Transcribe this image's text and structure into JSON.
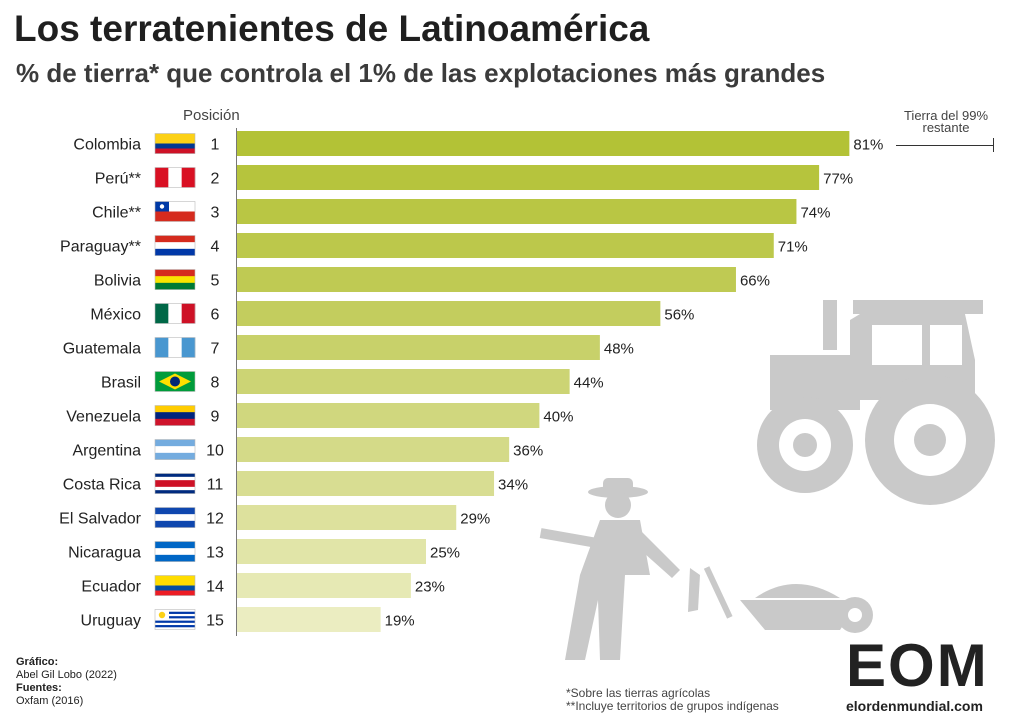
{
  "header": {
    "title": "Los terratenientes de Latinoamérica",
    "subtitle": "% de tierra* que controla el 1% de las explotaciones más grandes",
    "position_label": "Posición",
    "rest_label": "Tierra del 99% restante"
  },
  "chart_data": {
    "type": "bar",
    "orientation": "horizontal",
    "title": "Los terratenientes de Latinoamérica",
    "subtitle": "% de tierra* que controla el 1% de las explotaciones más grandes",
    "categories": [
      "Colombia",
      "Perú**",
      "Chile**",
      "Paraguay**",
      "Bolivia",
      "México",
      "Guatemala",
      "Brasil",
      "Venezuela",
      "Argentina",
      "Costa Rica",
      "El Salvador",
      "Nicaragua",
      "Ecuador",
      "Uruguay"
    ],
    "positions": [
      1,
      2,
      3,
      4,
      5,
      6,
      7,
      8,
      9,
      10,
      11,
      12,
      13,
      14,
      15
    ],
    "values": [
      81,
      77,
      74,
      71,
      66,
      56,
      48,
      44,
      40,
      36,
      34,
      29,
      25,
      23,
      19
    ],
    "value_labels": [
      "81%",
      "77%",
      "74%",
      "71%",
      "66%",
      "56%",
      "48%",
      "44%",
      "40%",
      "36%",
      "34%",
      "29%",
      "25%",
      "23%",
      "19%"
    ],
    "xlim": [
      0,
      100
    ],
    "grid": false,
    "bar_colors": [
      "#b3c236",
      "#b6c43d",
      "#b9c644",
      "#bcc84b",
      "#bfca53",
      "#c3cd5e",
      "#c8d16a",
      "#ccd474",
      "#d0d77e",
      "#d4da88",
      "#d8dd92",
      "#dde19d",
      "#e1e5a8",
      "#e6e9b4",
      "#ebedc1"
    ]
  },
  "flags": [
    {
      "country": "Colombia",
      "colors": [
        "#fcd116",
        "#fcd116",
        "#003893",
        "#ce1126"
      ],
      "type": "h"
    },
    {
      "country": "Perú",
      "colors": [
        "#d91023",
        "#ffffff",
        "#d91023"
      ],
      "type": "v"
    },
    {
      "country": "Chile",
      "colors": [
        "#ffffff",
        "#d52b1e"
      ],
      "type": "chile"
    },
    {
      "country": "Paraguay",
      "colors": [
        "#d52b1e",
        "#ffffff",
        "#0038a8"
      ],
      "type": "h"
    },
    {
      "country": "Bolivia",
      "colors": [
        "#d52b1e",
        "#f9e300",
        "#007934"
      ],
      "type": "h"
    },
    {
      "country": "México",
      "colors": [
        "#006847",
        "#ffffff",
        "#ce1126"
      ],
      "type": "v"
    },
    {
      "country": "Guatemala",
      "colors": [
        "#4997d0",
        "#ffffff",
        "#4997d0"
      ],
      "type": "v"
    },
    {
      "country": "Brasil",
      "colors": [
        "#009c3b",
        "#ffdf00",
        "#002776"
      ],
      "type": "brazil"
    },
    {
      "country": "Venezuela",
      "colors": [
        "#ffcc00",
        "#00247d",
        "#cf142b"
      ],
      "type": "h"
    },
    {
      "country": "Argentina",
      "colors": [
        "#74acdf",
        "#ffffff",
        "#74acdf"
      ],
      "type": "h"
    },
    {
      "country": "Costa Rica",
      "colors": [
        "#002b7f",
        "#ffffff",
        "#ce1126",
        "#ce1126",
        "#ffffff",
        "#002b7f"
      ],
      "type": "h"
    },
    {
      "country": "El Salvador",
      "colors": [
        "#0f47af",
        "#ffffff",
        "#0f47af"
      ],
      "type": "h"
    },
    {
      "country": "Nicaragua",
      "colors": [
        "#0067c6",
        "#ffffff",
        "#0067c6"
      ],
      "type": "h"
    },
    {
      "country": "Ecuador",
      "colors": [
        "#ffdd00",
        "#ffdd00",
        "#034ea2",
        "#ed1c24"
      ],
      "type": "h"
    },
    {
      "country": "Uruguay",
      "colors": [
        "#ffffff",
        "#0038a8",
        "#ffffff",
        "#0038a8",
        "#ffffff",
        "#0038a8",
        "#ffffff",
        "#0038a8",
        "#ffffff"
      ],
      "type": "uruguay"
    }
  ],
  "footer": {
    "graphic_label": "Gráfico:",
    "graphic_author": "Abel Gil Lobo (2022)",
    "sources_label": "Fuentes:",
    "sources": "Oxfam (2016)",
    "note1": "*Sobre las tierras agrícolas",
    "note2": "**Incluye territorios de grupos indígenas"
  },
  "logo": {
    "mark": "EOM",
    "url_prefix": "elorden",
    "url_suffix": "mundial.com"
  },
  "icons": [
    "tractor-icon",
    "farmer-icon",
    "wheelbarrow-icon"
  ]
}
